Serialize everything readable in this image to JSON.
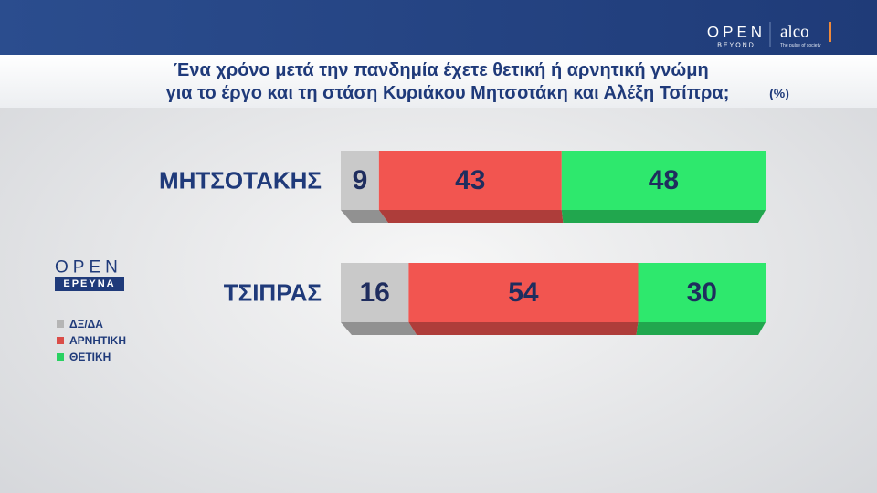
{
  "chart_data": {
    "type": "stacked-bar",
    "title_lines": [
      "Ένα χρόνο μετά την πανδημία έχετε θετική ή αρνητική γνώμη",
      "για το έργο και τη στάση Κυριάκου Μητσοτάκη και Αλέξη Τσίπρα;"
    ],
    "unit_note": "(%)",
    "categories": [
      "ΜΗΤΣΟΤΑΚΗΣ",
      "ΤΣΙΠΡΑΣ"
    ],
    "series": [
      {
        "name": "ΔΞ/ΔΑ",
        "color": "#c9c9c9",
        "values": [
          9,
          16
        ]
      },
      {
        "name": "ΑΡΝΗΤΙΚΗ",
        "color": "#f25550",
        "values": [
          43,
          54
        ]
      },
      {
        "name": "ΘΕΤΙΚΗ",
        "color": "#2ee86d",
        "values": [
          48,
          30
        ]
      }
    ],
    "xlim": [
      0,
      100
    ]
  },
  "branding": {
    "header_logo": "OPEN",
    "header_logo_sub": "BEYOND",
    "partner": "alco",
    "partner_tagline": "The pulse of society",
    "side_logo": "OPEN",
    "side_logo_sub": "ΕΡΕΥΝΑ"
  }
}
